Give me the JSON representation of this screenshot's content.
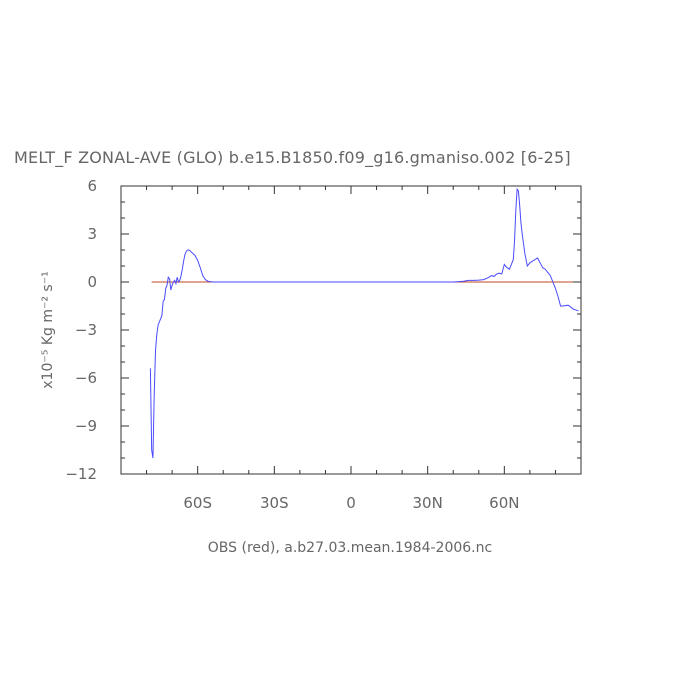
{
  "chart_data": {
    "type": "line",
    "title": "MELT_F ZONAL-AVE (GLO) b.e15.B1850.f09_g16.gmaniso.002 [6-25]",
    "ylabel": "x10⁻⁵ Kg m⁻² s⁻¹",
    "footnote": "OBS (red), a.b27.03.mean.1984-2006.nc",
    "xlim": [
      -90,
      90
    ],
    "ylim": [
      -12,
      6
    ],
    "xticks": [
      {
        "value": -60,
        "label": "60S"
      },
      {
        "value": -30,
        "label": "30S"
      },
      {
        "value": 0,
        "label": "0"
      },
      {
        "value": 30,
        "label": "30N"
      },
      {
        "value": 60,
        "label": "60N"
      }
    ],
    "yticks": [
      {
        "value": 6,
        "label": "6"
      },
      {
        "value": 3,
        "label": "3"
      },
      {
        "value": 0,
        "label": "0"
      },
      {
        "value": -3,
        "label": "−3"
      },
      {
        "value": -6,
        "label": "−6"
      },
      {
        "value": -9,
        "label": "−9"
      },
      {
        "value": -12,
        "label": "−12"
      }
    ],
    "series": [
      {
        "color": "#4a4aff",
        "x": [
          -78.5,
          -78,
          -77.5,
          -77,
          -76.5,
          -76,
          -75.5,
          -75,
          -74.5,
          -74,
          -73.5,
          -73,
          -72.5,
          -72,
          -71.5,
          -71,
          -70.5,
          -70,
          -69.5,
          -69,
          -68.5,
          -68,
          -67.5,
          -67,
          -66.5,
          -66,
          -65.5,
          -65,
          -64.5,
          -64,
          -63.5,
          -63,
          -62,
          -61,
          -60,
          -59,
          -58,
          -57,
          -56,
          -55,
          -54,
          -53,
          -52,
          -50,
          -40,
          -20,
          0,
          20,
          40,
          42,
          44,
          46,
          48,
          50,
          52,
          54,
          55,
          56,
          57,
          58,
          59,
          60,
          61,
          62,
          63,
          63.5,
          64,
          64.5,
          65,
          65.5,
          66,
          66.5,
          67,
          68,
          69,
          70,
          71,
          72,
          73,
          74,
          75,
          76,
          77,
          78,
          79,
          80,
          81,
          82,
          83,
          85,
          87,
          89
        ],
        "y": [
          -5.4,
          -10.5,
          -11.0,
          -7.0,
          -4.3,
          -3.3,
          -2.7,
          -2.5,
          -2.3,
          -2.1,
          -1.2,
          -1.1,
          -0.4,
          -0.2,
          0.3,
          0.2,
          -0.5,
          -0.2,
          0.0,
          0.1,
          -0.1,
          0.3,
          0.0,
          0.1,
          0.4,
          0.8,
          1.3,
          1.7,
          1.9,
          2.0,
          2.0,
          1.95,
          1.8,
          1.65,
          1.35,
          0.9,
          0.4,
          0.15,
          0.05,
          0.02,
          0.0,
          0.0,
          0.0,
          0.0,
          0.0,
          0.0,
          0.0,
          0.0,
          0.0,
          0.02,
          0.05,
          0.1,
          0.1,
          0.12,
          0.15,
          0.3,
          0.4,
          0.35,
          0.5,
          0.55,
          0.5,
          1.1,
          0.9,
          0.8,
          1.2,
          1.4,
          2.6,
          4.5,
          5.8,
          5.7,
          4.8,
          3.7,
          3.0,
          1.8,
          1.0,
          1.2,
          1.3,
          1.4,
          1.5,
          1.2,
          0.9,
          0.8,
          0.6,
          0.4,
          0.0,
          -0.4,
          -0.9,
          -1.5,
          -1.5,
          -1.45,
          -1.7,
          -1.8
        ]
      },
      {
        "color": "#c0471f",
        "x": [
          -78,
          89
        ],
        "y": [
          0,
          0
        ]
      }
    ],
    "grid": false
  }
}
